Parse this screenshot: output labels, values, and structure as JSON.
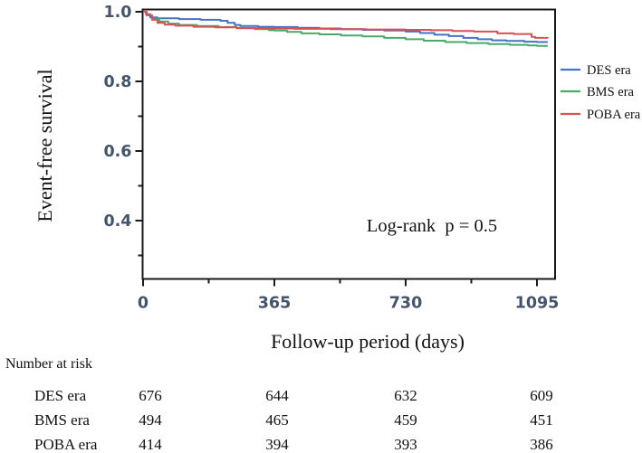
{
  "chart_data": {
    "type": "line",
    "subtype": "kaplan-meier-step",
    "title": "",
    "xlabel": "Follow-up period (days)",
    "ylabel": "Event-free survival",
    "annotation": "Log-rank  p = 0.5",
    "xlim": [
      0,
      1145
    ],
    "ylim": [
      0.23,
      1.01
    ],
    "grid": false,
    "legend_position": "right-outside",
    "frame_color": "#1a1a1a",
    "tick_label_color": "#44546A",
    "x_major_ticks": [
      {
        "value": 0,
        "label": "0"
      },
      {
        "value": 365,
        "label": "365"
      },
      {
        "value": 730,
        "label": "730"
      },
      {
        "value": 1095,
        "label": "1095"
      }
    ],
    "x_minor_ticks": [
      182.5,
      547.5,
      912.5
    ],
    "y_major_ticks": [
      {
        "value": 1.0,
        "label": "1.0"
      },
      {
        "value": 0.8,
        "label": "0.8"
      },
      {
        "value": 0.6,
        "label": "0.6"
      },
      {
        "value": 0.4,
        "label": "0.4"
      }
    ],
    "y_minor_ticks": [
      0.9,
      0.7,
      0.5,
      0.3
    ],
    "series": [
      {
        "name": "DES era",
        "color": "#4472C4",
        "points": [
          [
            0,
            1.0
          ],
          [
            8,
            0.993
          ],
          [
            20,
            0.984
          ],
          [
            40,
            0.981
          ],
          [
            100,
            0.979
          ],
          [
            160,
            0.977
          ],
          [
            215,
            0.974
          ],
          [
            235,
            0.968
          ],
          [
            255,
            0.962
          ],
          [
            270,
            0.959
          ],
          [
            320,
            0.957
          ],
          [
            365,
            0.956
          ],
          [
            430,
            0.954
          ],
          [
            490,
            0.952
          ],
          [
            550,
            0.95
          ],
          [
            610,
            0.948
          ],
          [
            670,
            0.946
          ],
          [
            730,
            0.943
          ],
          [
            770,
            0.939
          ],
          [
            810,
            0.934
          ],
          [
            850,
            0.93
          ],
          [
            890,
            0.925
          ],
          [
            930,
            0.921
          ],
          [
            970,
            0.918
          ],
          [
            1010,
            0.916
          ],
          [
            1060,
            0.914
          ],
          [
            1095,
            0.913
          ],
          [
            1125,
            0.913
          ]
        ]
      },
      {
        "name": "BMS era",
        "color": "#4AA96A",
        "points": [
          [
            0,
            1.0
          ],
          [
            10,
            0.99
          ],
          [
            25,
            0.98
          ],
          [
            45,
            0.972
          ],
          [
            70,
            0.966
          ],
          [
            100,
            0.962
          ],
          [
            150,
            0.959
          ],
          [
            210,
            0.956
          ],
          [
            260,
            0.953
          ],
          [
            310,
            0.95
          ],
          [
            350,
            0.947
          ],
          [
            365,
            0.946
          ],
          [
            400,
            0.942
          ],
          [
            440,
            0.938
          ],
          [
            490,
            0.935
          ],
          [
            550,
            0.932
          ],
          [
            610,
            0.929
          ],
          [
            670,
            0.925
          ],
          [
            730,
            0.921
          ],
          [
            780,
            0.917
          ],
          [
            840,
            0.913
          ],
          [
            900,
            0.91
          ],
          [
            960,
            0.907
          ],
          [
            1020,
            0.905
          ],
          [
            1070,
            0.903
          ],
          [
            1095,
            0.902
          ],
          [
            1125,
            0.902
          ]
        ]
      },
      {
        "name": "POBA era",
        "color": "#D84F55",
        "points": [
          [
            0,
            1.0
          ],
          [
            10,
            0.99
          ],
          [
            25,
            0.977
          ],
          [
            40,
            0.968
          ],
          [
            60,
            0.963
          ],
          [
            90,
            0.96
          ],
          [
            140,
            0.957
          ],
          [
            200,
            0.955
          ],
          [
            260,
            0.953
          ],
          [
            330,
            0.952
          ],
          [
            420,
            0.951
          ],
          [
            520,
            0.95
          ],
          [
            620,
            0.949
          ],
          [
            730,
            0.948
          ],
          [
            800,
            0.947
          ],
          [
            860,
            0.945
          ],
          [
            920,
            0.943
          ],
          [
            985,
            0.938
          ],
          [
            1030,
            0.936
          ],
          [
            1080,
            0.928
          ],
          [
            1090,
            0.925
          ],
          [
            1125,
            0.924
          ]
        ]
      }
    ]
  },
  "risk_table": {
    "title": "Number at risk",
    "column_times": [
      "0",
      "365",
      "730",
      "1095"
    ],
    "rows": [
      {
        "label": "DES era",
        "values": [
          "676",
          "644",
          "632",
          "609"
        ]
      },
      {
        "label": "BMS era",
        "values": [
          "494",
          "465",
          "459",
          "451"
        ]
      },
      {
        "label": "POBA era",
        "values": [
          "414",
          "394",
          "393",
          "386"
        ]
      }
    ]
  }
}
